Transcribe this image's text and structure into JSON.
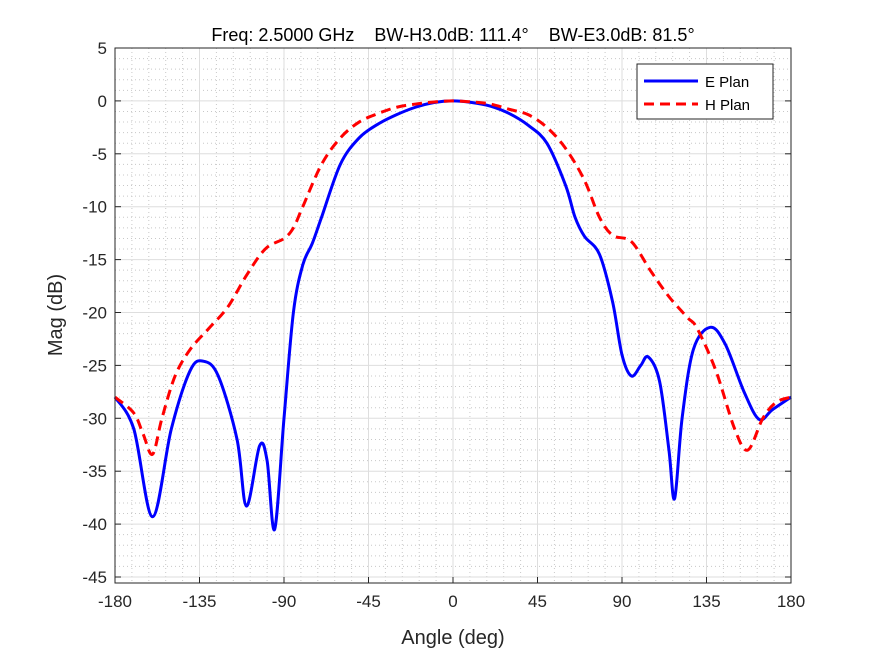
{
  "chart_data": {
    "type": "line",
    "title": "Freq: 2.5000 GHz    BW-H3.0dB: 111.4°    BW-E3.0dB: 81.5°",
    "xlabel": "Angle (deg)",
    "ylabel": "Mag (dB)",
    "xlim": [
      -180,
      180
    ],
    "ylim": [
      -46,
      5
    ],
    "xticks": [
      -180,
      -135,
      -90,
      -45,
      0,
      45,
      90,
      135,
      180
    ],
    "yticks": [
      5,
      0,
      -5,
      -10,
      -15,
      -20,
      -25,
      -30,
      -35,
      -40,
      -45
    ],
    "grid": true,
    "minor_grid": true,
    "legend_position": "top-right",
    "series": [
      {
        "name": "E Plan",
        "color": "#0000ff",
        "style": "solid",
        "x": [
          -180,
          -170,
          -160,
          -150,
          -140,
          -133,
          -125,
          -115,
          -110,
          -103,
          -99,
          -95,
          -90,
          -85,
          -80,
          -75,
          -70,
          -60,
          -50,
          -40,
          -30,
          -20,
          -10,
          0,
          10,
          20,
          30,
          40,
          50,
          60,
          65,
          70,
          78,
          85,
          90,
          95,
          100,
          104,
          110,
          115,
          118,
          122,
          128,
          137,
          145,
          155,
          163,
          170,
          180
        ],
        "y": [
          -28,
          -31,
          -39.3,
          -31,
          -25.5,
          -24.6,
          -26,
          -32,
          -38.3,
          -32.6,
          -34,
          -40.5,
          -30,
          -20,
          -15.5,
          -13.5,
          -11,
          -6,
          -3.5,
          -2.2,
          -1.3,
          -0.6,
          -0.15,
          0,
          -0.15,
          -0.5,
          -1.2,
          -2.3,
          -4,
          -8,
          -11,
          -12.8,
          -14.5,
          -19,
          -24,
          -26,
          -25,
          -24.2,
          -26.5,
          -33,
          -37.6,
          -30,
          -23.5,
          -21.4,
          -23,
          -27.5,
          -30.1,
          -29.2,
          -28
        ]
      },
      {
        "name": "H Plan",
        "color": "#ff0000",
        "style": "dashed",
        "x": [
          -180,
          -170,
          -165,
          -160,
          -155,
          -148,
          -140,
          -130,
          -120,
          -110,
          -100,
          -90,
          -85,
          -80,
          -70,
          -60,
          -50,
          -40,
          -30,
          -20,
          -10,
          0,
          10,
          20,
          30,
          40,
          50,
          60,
          70,
          78,
          85,
          95,
          105,
          115,
          125,
          130,
          140,
          150,
          157,
          165,
          172,
          180
        ],
        "y": [
          -28,
          -29.5,
          -31.5,
          -33.4,
          -30,
          -26,
          -23.5,
          -21.5,
          -19.5,
          -16.5,
          -14,
          -13,
          -12,
          -10,
          -6,
          -3.5,
          -2,
          -1.2,
          -0.6,
          -0.3,
          -0.1,
          0,
          -0.1,
          -0.3,
          -0.8,
          -1.3,
          -2.5,
          -4.5,
          -7.5,
          -11,
          -12.7,
          -13.3,
          -16,
          -18.5,
          -20.5,
          -21.5,
          -25.5,
          -31,
          -33,
          -30,
          -28.5,
          -28
        ]
      }
    ]
  }
}
